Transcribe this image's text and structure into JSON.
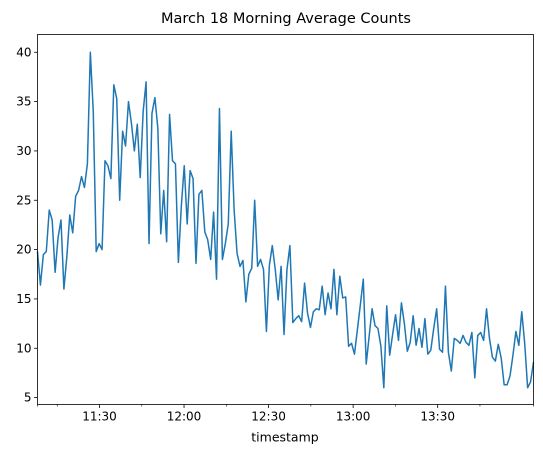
{
  "chart_data": {
    "type": "line",
    "title": "March 18 Morning Average Counts",
    "xlabel": "timestamp",
    "ylabel": "",
    "x_start": "11:08",
    "x_end": "14:04",
    "ylim": [
      4.3,
      41.8
    ],
    "grid": false,
    "x_ticks": [
      {
        "time": "11:30",
        "label": "11:30"
      },
      {
        "time": "12:00",
        "label": "12:00"
      },
      {
        "time": "12:30",
        "label": "12:30"
      },
      {
        "time": "13:00",
        "label": "13:00"
      },
      {
        "time": "13:30",
        "label": "13:30"
      }
    ],
    "y_ticks": [
      5,
      10,
      15,
      20,
      25,
      30,
      35,
      40
    ],
    "series": [
      {
        "color": "#1f77b4",
        "y": [
          19.8,
          16.4,
          19.5,
          19.8,
          24.0,
          23.0,
          17.7,
          21.2,
          23.0,
          16.0,
          19.3,
          23.5,
          21.7,
          25.4,
          26.0,
          27.4,
          26.3,
          28.7,
          40.0,
          34.0,
          19.8,
          20.6,
          20.0,
          29.0,
          28.5,
          27.2,
          36.7,
          35.3,
          25.0,
          32.0,
          30.5,
          35.0,
          32.8,
          30.0,
          32.7,
          27.3,
          34.0,
          37.0,
          20.6,
          33.8,
          35.4,
          32.3,
          21.6,
          26.0,
          20.8,
          33.7,
          29.0,
          28.7,
          18.7,
          24.4,
          28.5,
          22.6,
          28.0,
          27.2,
          18.6,
          25.6,
          26.0,
          21.8,
          21.0,
          19.0,
          23.8,
          17.0,
          34.3,
          19.0,
          20.6,
          22.6,
          32.0,
          24.0,
          19.6,
          18.3,
          18.9,
          14.7,
          17.5,
          18.1,
          25.0,
          18.3,
          19.0,
          18.0,
          11.7,
          18.4,
          20.4,
          18.0,
          14.9,
          18.3,
          11.4,
          18.0,
          20.4,
          12.6,
          13.0,
          13.3,
          12.7,
          16.6,
          13.6,
          12.1,
          13.7,
          14.0,
          13.9,
          16.3,
          13.4,
          15.6,
          14.0,
          18.0,
          13.4,
          17.3,
          15.1,
          15.2,
          10.2,
          10.5,
          9.4,
          11.9,
          14.4,
          17.0,
          8.4,
          11.2,
          14.0,
          12.3,
          12.0,
          10.2,
          6.0,
          14.3,
          9.3,
          11.4,
          13.4,
          10.8,
          14.6,
          12.5,
          9.7,
          10.6,
          13.3,
          10.3,
          12.0,
          10.1,
          13.0,
          9.4,
          9.8,
          12.0,
          14.0,
          9.9,
          9.6,
          16.3,
          9.6,
          7.7,
          11.0,
          10.8,
          10.5,
          11.3,
          10.6,
          10.3,
          11.6,
          7.0,
          11.3,
          11.6,
          10.8,
          14.0,
          11.0,
          9.1,
          8.7,
          10.4,
          9.0,
          6.3,
          6.3,
          7.2,
          9.3,
          11.7,
          10.3,
          13.7,
          10.5,
          6.0,
          6.6,
          8.6
        ]
      }
    ]
  }
}
